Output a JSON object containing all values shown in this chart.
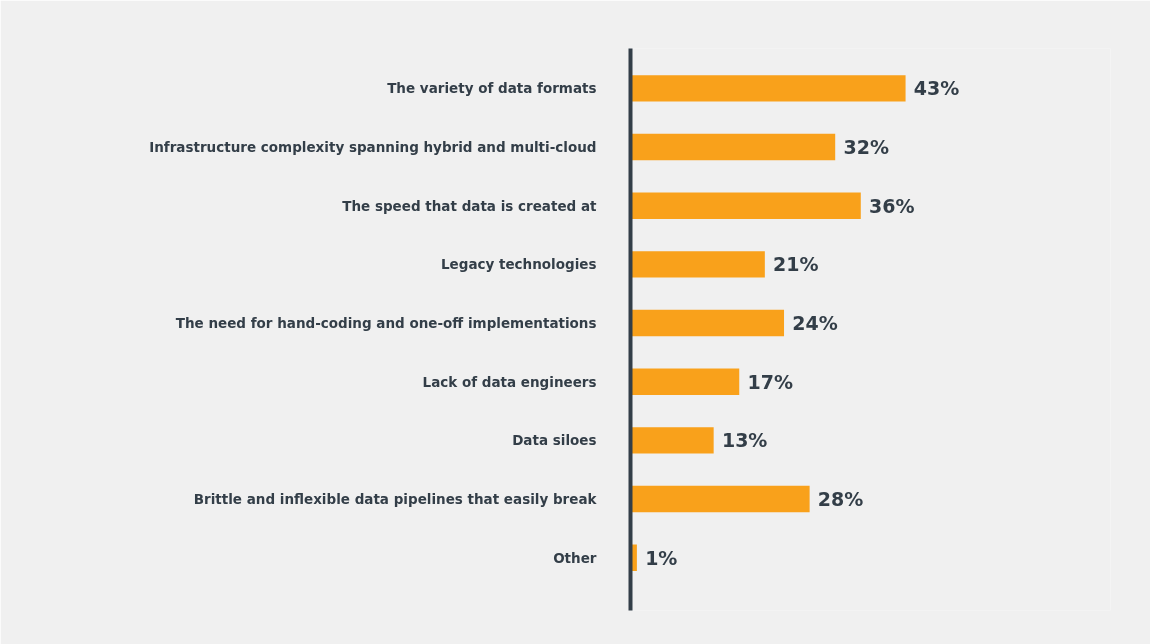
{
  "chart_data": {
    "type": "bar",
    "orientation": "horizontal",
    "categories": [
      "The variety of data formats",
      "Infrastructure complexity spanning hybrid and multi-cloud",
      "The speed that data is created at",
      "Legacy technologies",
      "The need for hand-coding and one-off implementations",
      "Lack of data engineers",
      "Data siloes",
      "Brittle and inflexible data pipelines that easily break",
      "Other"
    ],
    "values": [
      43,
      32,
      36,
      21,
      24,
      17,
      13,
      28,
      1
    ],
    "value_labels": [
      "43%",
      "32%",
      "36%",
      "21%",
      "24%",
      "17%",
      "13%",
      "28%",
      "1%"
    ],
    "color": "#f9a11b",
    "grid": false,
    "tick_labels": "y"
  }
}
